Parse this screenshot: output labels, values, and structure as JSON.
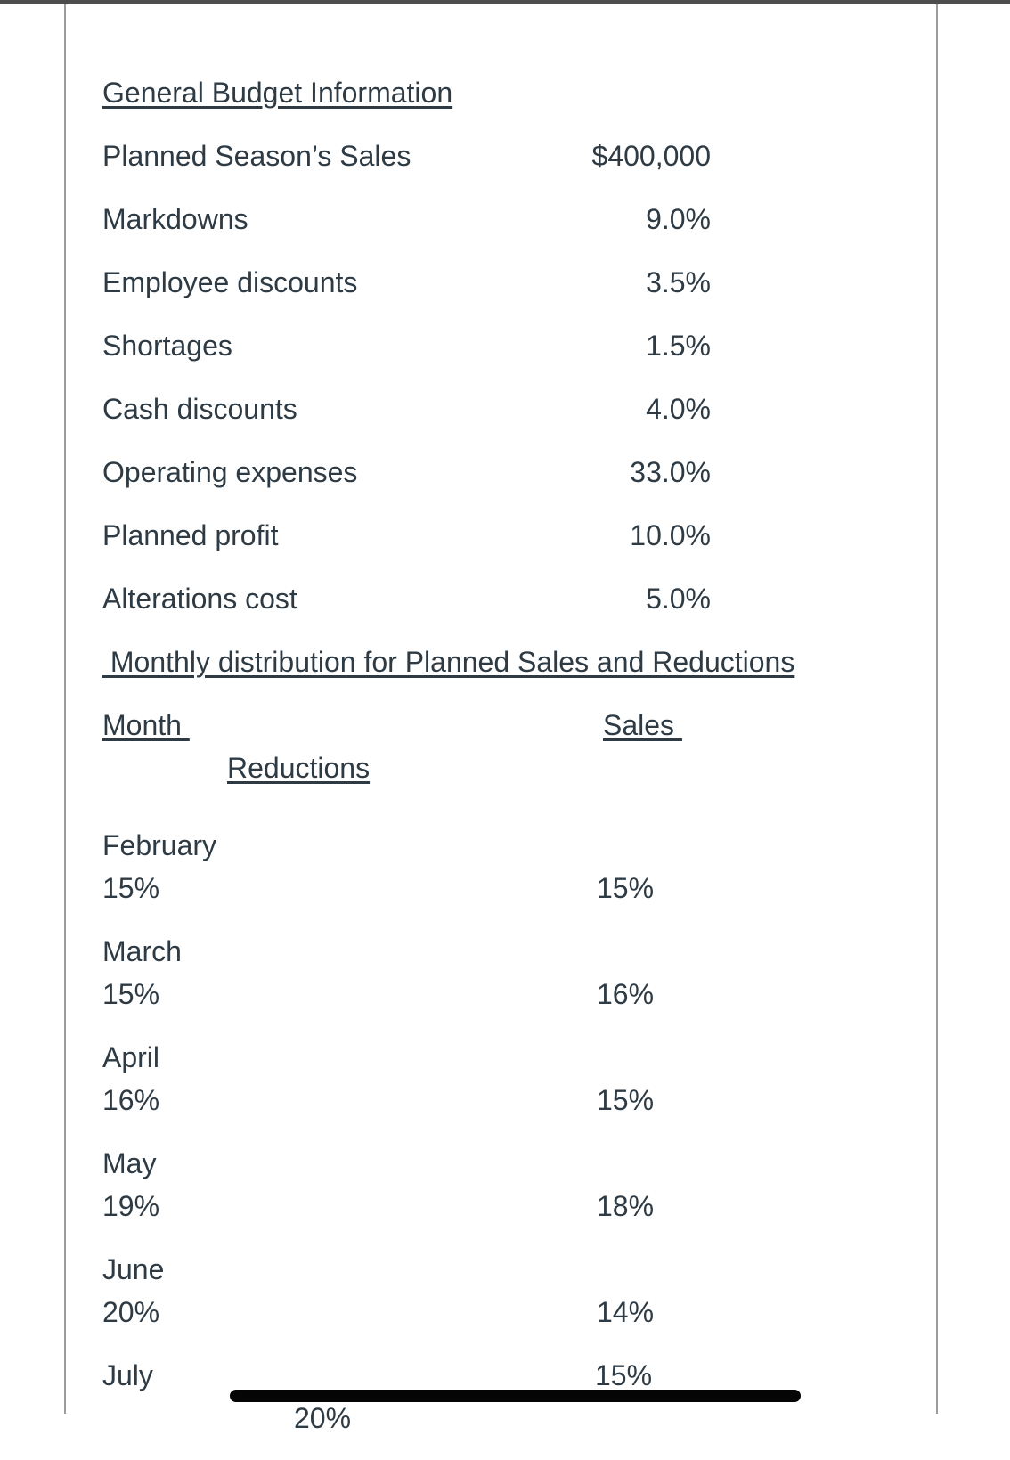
{
  "colors": {
    "text": "#2e3b44",
    "top_bar": "#4d4d4d",
    "frame_border": "#9c9c9c",
    "scrollbar_thumb": "#050505"
  },
  "budget": {
    "title": "General Budget Information",
    "rows": [
      {
        "label": "Planned Season’s Sales",
        "value": "$400,000"
      },
      {
        "label": "Markdowns",
        "value": "9.0%"
      },
      {
        "label": "Employee discounts",
        "value": "3.5%"
      },
      {
        "label": "Shortages",
        "value": "1.5%"
      },
      {
        "label": "Cash discounts",
        "value": "4.0%"
      },
      {
        "label": "Operating expenses",
        "value": "33.0%"
      },
      {
        "label": "Planned profit",
        "value": "10.0%"
      },
      {
        "label": "Alterations cost",
        "value": "5.0%"
      }
    ]
  },
  "monthly": {
    "title": " Monthly distribution for Planned Sales and Reductions",
    "headers": {
      "month": "Month ",
      "sales": "Sales ",
      "reductions": "Reductions"
    },
    "months": [
      {
        "name": "February",
        "reductions": "15%",
        "sales": "15%"
      },
      {
        "name": "March",
        "reductions": "15%",
        "sales": "16%"
      },
      {
        "name": "April",
        "reductions": "16%",
        "sales": "15%"
      },
      {
        "name": "May",
        "reductions": "19%",
        "sales": "18%"
      },
      {
        "name": "June",
        "reductions": "20%",
        "sales": "14%"
      },
      {
        "name": "July",
        "reductions": "20%",
        "sales": "15%"
      }
    ]
  }
}
